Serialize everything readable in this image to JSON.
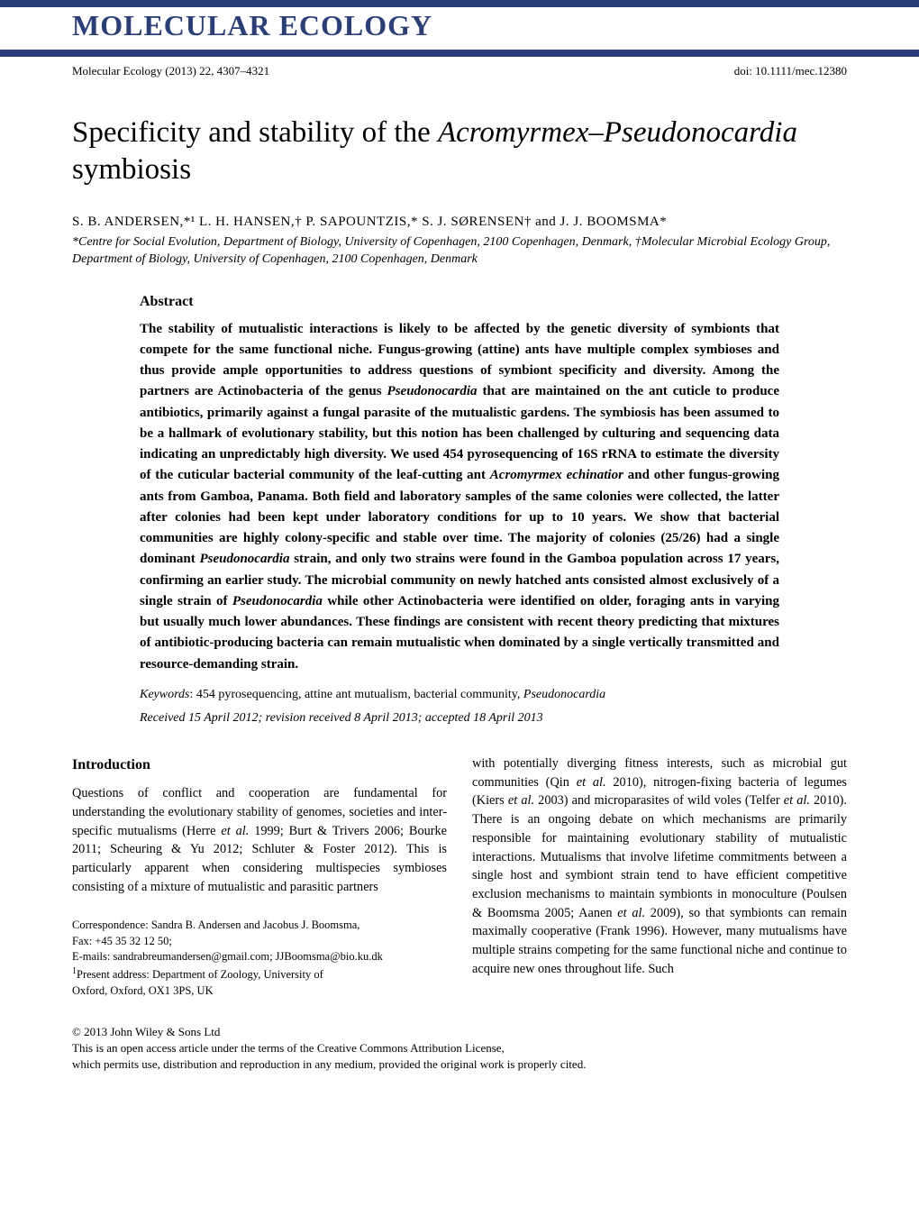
{
  "journal": {
    "logo_text": "MOLECULAR ECOLOGY",
    "citation": "Molecular Ecology (2013) 22, 4307–4321",
    "doi": "doi: 10.1111/mec.12380"
  },
  "article": {
    "title_prefix": "Specificity and stability of the ",
    "title_italic1": "Acromyrmex",
    "title_mid": "–",
    "title_italic2": "Pseudonocardia",
    "title_suffix": " symbiosis",
    "authors": "S. B. ANDERSEN,*¹ L. H. HANSEN,† P. SAPOUNTZIS,* S. J. SØRENSEN† and J. J. BOOMSMA*",
    "affiliations": "*Centre for Social Evolution, Department of Biology, University of Copenhagen, 2100 Copenhagen, Denmark, †Molecular Microbial Ecology Group, Department of Biology, University of Copenhagen, 2100 Copenhagen, Denmark"
  },
  "abstract": {
    "heading": "Abstract",
    "text_parts": {
      "p1": "The stability of mutualistic interactions is likely to be affected by the genetic diversity of symbionts that compete for the same functional niche. Fungus-growing (attine) ants have multiple complex symbioses and thus provide ample opportunities to address questions of symbiont specificity and diversity. Among the partners are Actinobacteria of the genus ",
      "i1": "Pseudonocardia",
      "p2": " that are maintained on the ant cuticle to produce antibiotics, primarily against a fungal parasite of the mutualistic gardens. The symbiosis has been assumed to be a hallmark of evolutionary stability, but this notion has been challenged by culturing and sequencing data indicating an unpredictably high diversity. We used 454 pyrosequencing of 16S rRNA to estimate the diversity of the cuticular bacterial community of the leaf-cutting ant ",
      "i2": "Acromyrmex echinatior",
      "p3": " and other fungus-growing ants from Gamboa, Panama. Both field and laboratory samples of the same colonies were collected, the latter after colonies had been kept under laboratory conditions for up to 10 years. We show that bacterial communities are highly colony-specific and stable over time. The majority of colonies (25/26) had a single dominant ",
      "i3": "Pseudonocardia",
      "p4": " strain, and only two strains were found in the Gamboa population across 17 years, confirming an earlier study. The microbial community on newly hatched ants consisted almost exclusively of a single strain of ",
      "i4": "Pseudonocardia",
      "p5": " while other Actinobacteria were identified on older, foraging ants in varying but usually much lower abundances. These findings are consistent with recent theory predicting that mixtures of antibiotic-producing bacteria can remain mutualistic when dominated by a single vertically transmitted and resource-demanding strain."
    }
  },
  "keywords": {
    "label": "Keywords",
    "text": ": 454 pyrosequencing, attine ant mutualism, bacterial community, ",
    "italic": "Pseudonocardia"
  },
  "dates": "Received 15 April 2012; revision received 8 April 2013; accepted 18 April 2013",
  "introduction": {
    "heading": "Introduction",
    "col1_p1": "Questions of conflict and cooperation are fundamental for understanding the evolutionary stability of genomes, societies and inter-specific mutualisms (Herre ",
    "col1_i1": "et al.",
    "col1_p2": " 1999; Burt & Trivers 2006; Bourke 2011; Scheuring & Yu 2012; Schluter & Foster 2012). This is particularly apparent when considering multispecies symbioses consisting of a mixture of mutualistic and parasitic partners",
    "col2_p1": "with potentially diverging fitness interests, such as microbial gut communities (Qin ",
    "col2_i1": "et al.",
    "col2_p2": " 2010), nitrogen-fixing bacteria of legumes (Kiers ",
    "col2_i2": "et al.",
    "col2_p3": " 2003) and microparasites of wild voles (Telfer ",
    "col2_i3": "et al.",
    "col2_p4": " 2010). There is an ongoing debate on which mechanisms are primarily responsible for maintaining evolutionary stability of mutualistic interactions. Mutualisms that involve lifetime commitments between a single host and symbiont strain tend to have efficient competitive exclusion mechanisms to maintain symbionts in monoculture (Poulsen & Boomsma 2005; Aanen ",
    "col2_i4": "et al.",
    "col2_p5": " 2009), so that symbionts can remain maximally cooperative (Frank 1996). However, many mutualisms have multiple strains competing for the same functional niche and continue to acquire new ones throughout life. Such"
  },
  "correspondence": {
    "line1": "Correspondence: Sandra B. Andersen and Jacobus J. Boomsma,",
    "line2": "Fax: +45 35 32 12 50;",
    "line3": "E-mails: sandrabreumandersen@gmail.com; JJBoomsma@bio.ku.dk",
    "line4_sup": "1",
    "line4": "Present address: Department of Zoology, University of",
    "line5": "Oxford, Oxford, OX1 3PS, UK"
  },
  "footer": {
    "copyright": "© 2013 John Wiley & Sons Ltd",
    "license1": "This is an open access article under the terms of the Creative Commons Attribution License,",
    "license2": "which permits use, distribution and reproduction in any medium, provided the original work is properly cited."
  }
}
